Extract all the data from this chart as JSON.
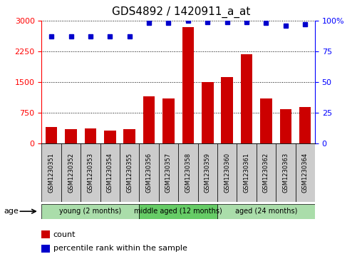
{
  "title": "GDS4892 / 1420911_a_at",
  "samples": [
    "GSM1230351",
    "GSM1230352",
    "GSM1230353",
    "GSM1230354",
    "GSM1230355",
    "GSM1230356",
    "GSM1230357",
    "GSM1230358",
    "GSM1230359",
    "GSM1230360",
    "GSM1230361",
    "GSM1230362",
    "GSM1230363",
    "GSM1230364"
  ],
  "counts": [
    400,
    350,
    375,
    315,
    350,
    1150,
    1100,
    2850,
    1500,
    1620,
    2180,
    1100,
    850,
    900
  ],
  "percentiles": [
    87,
    87,
    87,
    87,
    87,
    98,
    98,
    100,
    99,
    99,
    99,
    98,
    96,
    97
  ],
  "bar_color": "#cc0000",
  "dot_color": "#0000cc",
  "ylim_left": [
    0,
    3000
  ],
  "ylim_right": [
    0,
    100
  ],
  "yticks_left": [
    0,
    750,
    1500,
    2250,
    3000
  ],
  "yticks_right": [
    0,
    25,
    50,
    75,
    100
  ],
  "groups": [
    {
      "label": "young (2 months)",
      "start": 0,
      "end": 5,
      "color": "#aaddaa"
    },
    {
      "label": "middle aged (12 months)",
      "start": 5,
      "end": 9,
      "color": "#66cc66"
    },
    {
      "label": "aged (24 months)",
      "start": 9,
      "end": 14,
      "color": "#aaddaa"
    }
  ],
  "age_label": "age",
  "legend_count_label": "count",
  "legend_pct_label": "percentile rank within the sample",
  "plot_bg_color": "#ffffff",
  "title_fontsize": 11,
  "tick_fontsize": 8,
  "label_fontsize": 8
}
